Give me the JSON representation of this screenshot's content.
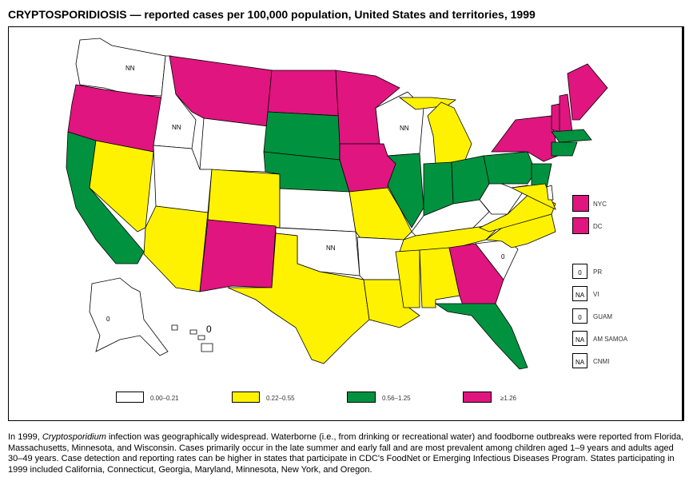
{
  "title": "CRYPTOSPORIDIOSIS — reported cases per 100,000 population, United States and territories, 1999",
  "colors": {
    "cat0": "#FFFFFF",
    "cat1": "#FFF200",
    "cat2": "#00923F",
    "cat3": "#E0157F",
    "border": "#000000"
  },
  "legend": [
    {
      "label": "0.00–0.21",
      "color": "#FFFFFF"
    },
    {
      "label": "0.22–0.55",
      "color": "#FFF200"
    },
    {
      "label": "0.56–1.25",
      "color": "#00923F"
    },
    {
      "label": "≥1.26",
      "color": "#E0157F"
    }
  ],
  "cities": [
    {
      "label": "NYC",
      "category": 3
    },
    {
      "label": "DC",
      "category": 3
    }
  ],
  "territories": [
    {
      "label": "PR",
      "value": "0"
    },
    {
      "label": "VI",
      "value": "NA"
    },
    {
      "label": "GUAM",
      "value": "0"
    },
    {
      "label": "AM SAMOA",
      "value": "NA"
    },
    {
      "label": "CNMI",
      "value": "NA"
    }
  ],
  "state_categories": {
    "WA": 0,
    "ID": 0,
    "WY": 0,
    "UT": 0,
    "KS": 0,
    "OK": 0,
    "AR": 0,
    "WI": 0,
    "KY": 0,
    "WV": 0,
    "SC": 0,
    "AK": 0,
    "HI": 0,
    "DE": 0,
    "NV": 1,
    "AZ": 1,
    "CO": 1,
    "TX": 1,
    "MO": 1,
    "LA": 1,
    "MS": 1,
    "AL": 1,
    "TN": 1,
    "NC": 1,
    "VA": 1,
    "MD": 1,
    "MI": 1,
    "MIU": 1,
    "CA": 2,
    "SD": 2,
    "NE": 2,
    "IL": 2,
    "IN": 2,
    "OH": 2,
    "PA": 2,
    "NJ": 2,
    "CT": 2,
    "MA": 2,
    "FL": 2,
    "OR": 3,
    "MT": 3,
    "ND": 3,
    "MN": 3,
    "IA": 3,
    "NM": 3,
    "GA": 3,
    "NY": 3,
    "VT": 3,
    "NH": 3,
    "ME": 3
  },
  "state_labels": {
    "WA": "NN",
    "ID": "NN",
    "WI": "NN",
    "OK": "NN",
    "SC": "0",
    "AK": "0",
    "HI": "0"
  },
  "footnote": {
    "pre": "In 1999, ",
    "italic": "Cryptosporidium",
    "post": " infection was geographically widespread. Waterborne (i.e., from drinking or recreational water) and foodborne outbreaks were reported from Florida, Massachusetts, Minnesota, and Wisconsin. Cases primarily occur in the late summer and early fall and are most prevalent among children aged 1–9 years and adults aged 30–49 years. Case detection and reporting rates can be higher in states that participate in CDC's FoodNet or Emerging Infectious Diseases Program. States participating in 1999 included California, Connecticut, Georgia, Maryland, Minnesota, New York, and Oregon."
  }
}
